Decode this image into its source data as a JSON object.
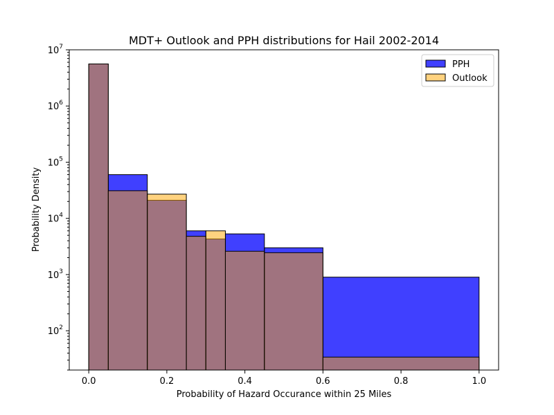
{
  "chart_data": {
    "type": "bar",
    "title": "MDT+ Outlook and PPH distributions for Hail 2002-2014",
    "xlabel": "Probability of Hazard Occurance within 25 Miles",
    "ylabel": "Probability Density",
    "xlim": [
      -0.05,
      1.05
    ],
    "ylim": [
      20,
      10000000
    ],
    "yscale": "log",
    "x_ticks": [
      0.0,
      0.2,
      0.4,
      0.6,
      0.8,
      1.0
    ],
    "x_tick_labels": [
      "0.0",
      "0.2",
      "0.4",
      "0.6",
      "0.8",
      "1.0"
    ],
    "y_tick_exponents": [
      "2",
      "3",
      "4",
      "5",
      "6",
      "7"
    ],
    "y_tick_base": "10",
    "bins": [
      [
        0.0,
        0.05
      ],
      [
        0.05,
        0.15
      ],
      [
        0.15,
        0.25
      ],
      [
        0.25,
        0.3
      ],
      [
        0.3,
        0.35
      ],
      [
        0.35,
        0.45
      ],
      [
        0.45,
        0.6
      ],
      [
        0.6,
        1.0
      ]
    ],
    "series": [
      {
        "name": "PPH",
        "color": "#0000ff",
        "opacity": 0.75,
        "values": [
          5600000,
          60000,
          21000,
          6000,
          4300,
          5300,
          3000,
          900
        ]
      },
      {
        "name": "Outlook",
        "color": "#ffa500",
        "opacity": 0.5,
        "values": [
          5600000,
          31000,
          27000,
          4800,
          6000,
          2600,
          2450,
          34
        ]
      }
    ],
    "legend": "top-right",
    "grid": false
  }
}
